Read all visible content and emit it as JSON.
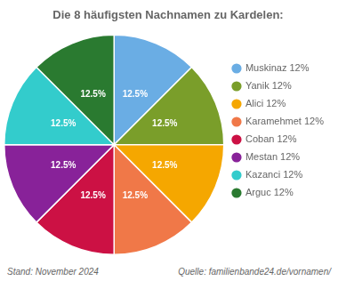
{
  "chart_data": {
    "type": "pie",
    "title": "Die 8 häufigsten Nachnamen zu Kardelen:",
    "categories": [
      "Muskinaz 12%",
      "Yanik 12%",
      "Alici 12%",
      "Karamehmet 12%",
      "Coban 12%",
      "Mestan 12%",
      "Kazanci 12%",
      "Arguc 12%"
    ],
    "values": [
      12.5,
      12.5,
      12.5,
      12.5,
      12.5,
      12.5,
      12.5,
      12.5
    ],
    "value_labels": [
      "12.5%",
      "12.5%",
      "12.5%",
      "12.5%",
      "12.5%",
      "12.5%",
      "12.5%",
      "12.5%"
    ],
    "data_labels": true,
    "colors": [
      "#6aade4",
      "#7a9e2a",
      "#f5a700",
      "#f07848",
      "#cc1144",
      "#882299",
      "#33cccc",
      "#2a7a30"
    ],
    "legend": "right",
    "annotations": [
      "Stand: November 2024",
      "Quelle: familienbande24.de/vornamen/"
    ]
  }
}
